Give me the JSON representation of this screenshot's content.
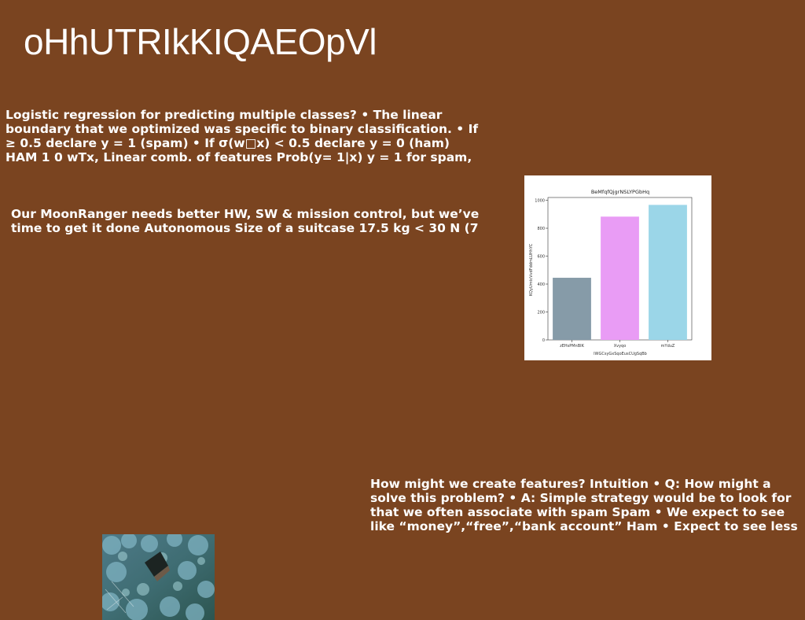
{
  "slide": {
    "title": "oHhUTRIkKIQAEOpVl",
    "paragraphs": [
      {
        "lines": [
          "Logistic regression for predicting multiple classes? • The linear",
          "boundary that we optimized was specific to binary classification. • If",
          "≥ 0.5 declare y = 1 (spam) • If σ(w□x) < 0.5 declare y = 0 (ham)",
          "HAM 1 0 wTx, Linear comb. of features Prob(y= 1|x) y = 1 for spam,"
        ]
      },
      {
        "lines": [
          "Our MoonRanger needs better HW, SW & mission control, but we’ve",
          "time to get it done Autonomous Size of a suitcase 17.5 kg < 30 N (7"
        ]
      },
      {
        "lines": [
          "How might we create features? Intuition • Q: How might a",
          "solve this problem? • A: Simple strategy would be to look for",
          "that we often associate with spam Spam • We expect to see",
          "like “money”,“free”,“bank account” Ham • Expect to see less"
        ]
      }
    ]
  },
  "chart_data": {
    "type": "bar",
    "title": "BeMfqfQjgrNSLYPGbHq",
    "xlabel": "lWGCsyGxSqoEusCUgSqBb",
    "ylabel": "KQyUmtcVvdFddmLUHhYC",
    "categories": [
      "zEHsPMnBIK",
      "Xvyqo",
      "mYduZ"
    ],
    "values": [
      445,
      883,
      967
    ],
    "colors": [
      "#869ba8",
      "#e99cf5",
      "#9bd6e8"
    ],
    "ylim": [
      0,
      1020
    ],
    "yticks": [
      0,
      200,
      400,
      600,
      800,
      1000
    ],
    "grid": false
  }
}
